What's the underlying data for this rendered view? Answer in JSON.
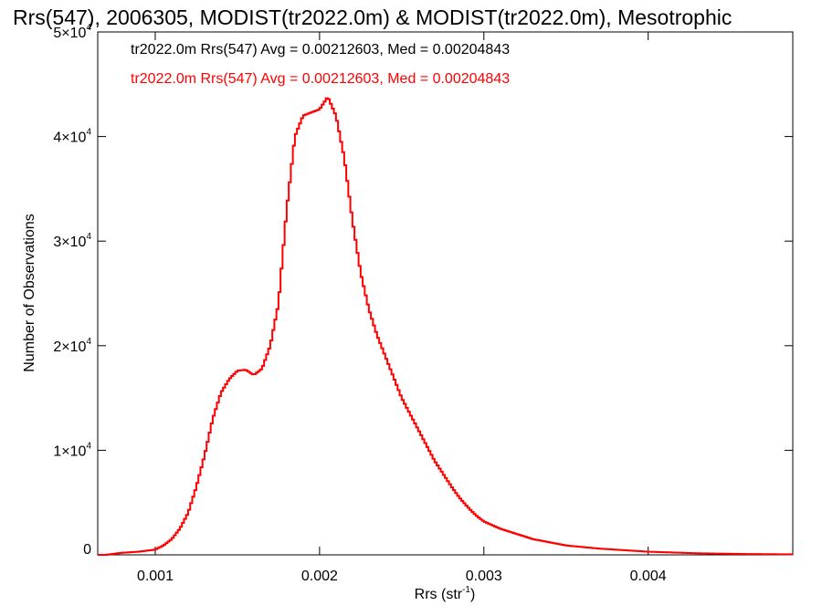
{
  "chart_data": {
    "type": "histogram",
    "title": "Rrs(547), 2006305, MODIST(tr2022.0m) & MODIST(tr2022.0m), Mesotrophic",
    "xlabel": "Rrs (str",
    "xlabel_sup": "-1",
    "xlabel_end": ")",
    "ylabel": "Number of Observations",
    "xlim": [
      0.00065,
      0.00488
    ],
    "ylim": [
      0,
      50000
    ],
    "x_ticks": [
      {
        "value": 0.001,
        "label": "0.001"
      },
      {
        "value": 0.002,
        "label": "0.002"
      },
      {
        "value": 0.003,
        "label": "0.003"
      },
      {
        "value": 0.004,
        "label": "0.004"
      }
    ],
    "y_ticks": [
      {
        "value": 0,
        "mant": "0",
        "exp": ""
      },
      {
        "value": 10000,
        "mant": "1×10",
        "exp": "4"
      },
      {
        "value": 20000,
        "mant": "2×10",
        "exp": "4"
      },
      {
        "value": 30000,
        "mant": "3×10",
        "exp": "4"
      },
      {
        "value": 40000,
        "mant": "4×10",
        "exp": "4"
      },
      {
        "value": 50000,
        "mant": "5×10",
        "exp": "4"
      }
    ],
    "legend": [
      {
        "text": "tr2022.0m Rrs(547) Avg = 0.00212603, Med = 0.00204843",
        "color": "#000000"
      },
      {
        "text": "tr2022.0m Rrs(547) Avg = 0.00212603, Med = 0.00204843",
        "color": "#ff0000"
      }
    ],
    "series": [
      {
        "color": "#ff0000",
        "x": [
          0.00065,
          0.0007,
          0.0008,
          0.0009,
          0.001,
          0.00105,
          0.0011,
          0.00115,
          0.0012,
          0.00125,
          0.0013,
          0.00135,
          0.0014,
          0.00145,
          0.0015,
          0.00155,
          0.0016,
          0.00165,
          0.0017,
          0.00175,
          0.0018,
          0.00185,
          0.0019,
          0.00195,
          0.002,
          0.00205,
          0.0021,
          0.00215,
          0.0022,
          0.00225,
          0.0023,
          0.00235,
          0.0024,
          0.00245,
          0.0025,
          0.00255,
          0.0026,
          0.00265,
          0.0027,
          0.00275,
          0.0028,
          0.00285,
          0.0029,
          0.00295,
          0.003,
          0.0031,
          0.0032,
          0.0033,
          0.0035,
          0.0037,
          0.004,
          0.0043,
          0.0046,
          0.00488
        ],
        "y": [
          0,
          0,
          200,
          300,
          500,
          900,
          1500,
          2500,
          4000,
          6500,
          9500,
          13000,
          15500,
          16800,
          17600,
          17700,
          17200,
          17800,
          20000,
          24000,
          33000,
          40000,
          42000,
          42300,
          42600,
          43800,
          42000,
          38000,
          32000,
          27000,
          23500,
          21000,
          19000,
          17000,
          15000,
          13500,
          12000,
          10500,
          9000,
          7800,
          6600,
          5500,
          4600,
          3800,
          3200,
          2500,
          2000,
          1500,
          900,
          600,
          300,
          150,
          80,
          50
        ]
      }
    ]
  }
}
